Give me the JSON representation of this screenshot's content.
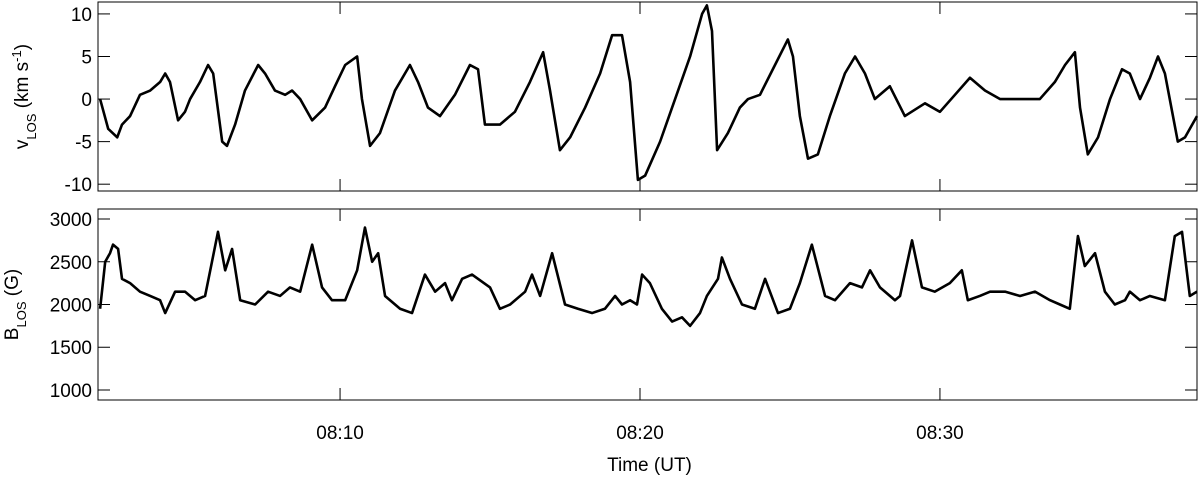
{
  "chart_data": [
    {
      "type": "line",
      "ylabel": [
        "v",
        "LOS",
        " (km s",
        "-1",
        ")"
      ],
      "color": "#000000",
      "xlim": [
        1.93,
        38.57
      ],
      "ylim": [
        -10.8,
        11.4
      ],
      "yticks": [
        -10,
        -5,
        0,
        5,
        10
      ],
      "x": [
        2.0,
        2.27,
        2.57,
        2.73,
        3.0,
        3.33,
        3.67,
        4.0,
        4.17,
        4.33,
        4.6,
        4.83,
        5.0,
        5.33,
        5.6,
        5.77,
        6.07,
        6.23,
        6.5,
        6.83,
        7.27,
        7.5,
        7.83,
        8.17,
        8.4,
        8.67,
        9.07,
        9.5,
        9.83,
        10.17,
        10.57,
        10.73,
        11.0,
        11.33,
        11.83,
        12.33,
        12.6,
        12.93,
        13.33,
        13.83,
        14.33,
        14.6,
        14.83,
        15.33,
        15.83,
        16.33,
        16.77,
        17.0,
        17.33,
        17.67,
        18.17,
        18.67,
        19.07,
        19.4,
        19.67,
        19.93,
        20.17,
        20.67,
        21.17,
        21.67,
        22.07,
        22.23,
        22.4,
        22.57,
        22.93,
        23.33,
        23.6,
        24.0,
        24.5,
        24.93,
        25.1,
        25.33,
        25.6,
        25.93,
        26.33,
        26.83,
        27.17,
        27.5,
        27.83,
        28.33,
        28.83,
        29.5,
        30.0,
        30.5,
        31.0,
        31.5,
        32.0,
        32.67,
        33.33,
        33.83,
        34.17,
        34.5,
        34.67,
        34.93,
        35.27,
        35.67,
        36.07,
        36.33,
        36.67,
        37.0,
        37.27,
        37.5,
        37.93,
        38.17,
        38.57
      ],
      "values": [
        0,
        -3.5,
        -4.5,
        -3,
        -2,
        0.5,
        1,
        2,
        3,
        2,
        -2.5,
        -1.5,
        0,
        2,
        4,
        3,
        -5,
        -5.5,
        -3,
        1,
        4,
        3,
        1,
        0.5,
        1,
        0,
        -2.5,
        -1,
        1.5,
        4,
        5,
        0,
        -5.5,
        -4,
        1,
        4,
        2,
        -1,
        -2,
        0.5,
        4,
        3.5,
        -3,
        -3,
        -1.5,
        2,
        5.5,
        1,
        -6,
        -4.5,
        -1,
        3,
        7.5,
        7.5,
        2,
        -9.5,
        -9,
        -5,
        0,
        5,
        10,
        11,
        8,
        -6,
        -4,
        -1,
        0,
        0.5,
        4,
        7,
        5,
        -2,
        -7,
        -6.5,
        -2,
        3,
        5,
        3,
        0,
        1.5,
        -2,
        -0.5,
        -1.5,
        0.5,
        2.5,
        1,
        0,
        0,
        0,
        2,
        4,
        5.5,
        -1,
        -6.5,
        -4.5,
        0,
        3.5,
        3,
        0,
        2.5,
        5,
        3,
        -5,
        -4.5,
        -2
      ]
    },
    {
      "type": "line",
      "ylabel": [
        "B",
        "LOS",
        " (G)"
      ],
      "xlabel": "Time (UT)",
      "color": "#000000",
      "xlim": [
        1.93,
        38.57
      ],
      "ylim": [
        883,
        3117
      ],
      "yticks": [
        1000,
        1500,
        2000,
        2500,
        3000
      ],
      "xticks": [
        {
          "value": 10,
          "label": "08:10"
        },
        {
          "value": 20,
          "label": "08:20"
        },
        {
          "value": 30,
          "label": "08:30"
        }
      ],
      "x": [
        2.0,
        2.17,
        2.33,
        2.43,
        2.6,
        2.73,
        3.0,
        3.33,
        3.67,
        4.0,
        4.17,
        4.5,
        4.83,
        5.17,
        5.5,
        5.73,
        5.93,
        6.17,
        6.4,
        6.67,
        7.17,
        7.6,
        8.0,
        8.33,
        8.67,
        9.07,
        9.4,
        9.73,
        10.17,
        10.57,
        10.83,
        11.07,
        11.27,
        11.5,
        12.0,
        12.4,
        12.83,
        13.17,
        13.5,
        13.73,
        14.07,
        14.4,
        15.0,
        15.33,
        15.67,
        16.17,
        16.4,
        16.67,
        17.07,
        17.5,
        17.93,
        18.4,
        18.83,
        19.17,
        19.4,
        19.67,
        19.9,
        20.07,
        20.33,
        20.73,
        21.07,
        21.4,
        21.67,
        22.0,
        22.23,
        22.6,
        22.73,
        23.0,
        23.4,
        23.83,
        24.17,
        24.6,
        25.0,
        25.33,
        25.73,
        26.17,
        26.5,
        27.0,
        27.4,
        27.67,
        28.0,
        28.5,
        28.67,
        29.07,
        29.4,
        29.83,
        30.33,
        30.73,
        30.93,
        31.33,
        31.67,
        32.17,
        32.67,
        33.17,
        33.67,
        34.0,
        34.33,
        34.6,
        34.83,
        35.17,
        35.5,
        35.83,
        36.17,
        36.33,
        36.67,
        37.0,
        37.5,
        37.83,
        38.07,
        38.33,
        38.57
      ],
      "values": [
        1950,
        2500,
        2600,
        2700,
        2650,
        2300,
        2250,
        2150,
        2100,
        2050,
        1900,
        2150,
        2150,
        2050,
        2100,
        2500,
        2850,
        2400,
        2650,
        2050,
        2000,
        2150,
        2100,
        2200,
        2150,
        2700,
        2200,
        2050,
        2050,
        2400,
        2900,
        2500,
        2600,
        2100,
        1950,
        1900,
        2350,
        2150,
        2250,
        2050,
        2300,
        2350,
        2200,
        1950,
        2000,
        2150,
        2350,
        2100,
        2600,
        2000,
        1950,
        1900,
        1950,
        2100,
        2000,
        2050,
        2000,
        2350,
        2250,
        1950,
        1800,
        1850,
        1750,
        1900,
        2100,
        2300,
        2550,
        2300,
        2000,
        1950,
        2300,
        1900,
        1950,
        2250,
        2700,
        2100,
        2050,
        2250,
        2200,
        2400,
        2200,
        2050,
        2100,
        2750,
        2200,
        2150,
        2250,
        2400,
        2050,
        2100,
        2150,
        2150,
        2100,
        2150,
        2050,
        2000,
        1950,
        2800,
        2450,
        2600,
        2150,
        2000,
        2050,
        2150,
        2050,
        2100,
        2050,
        2800,
        2850,
        2100,
        2150
      ]
    }
  ]
}
